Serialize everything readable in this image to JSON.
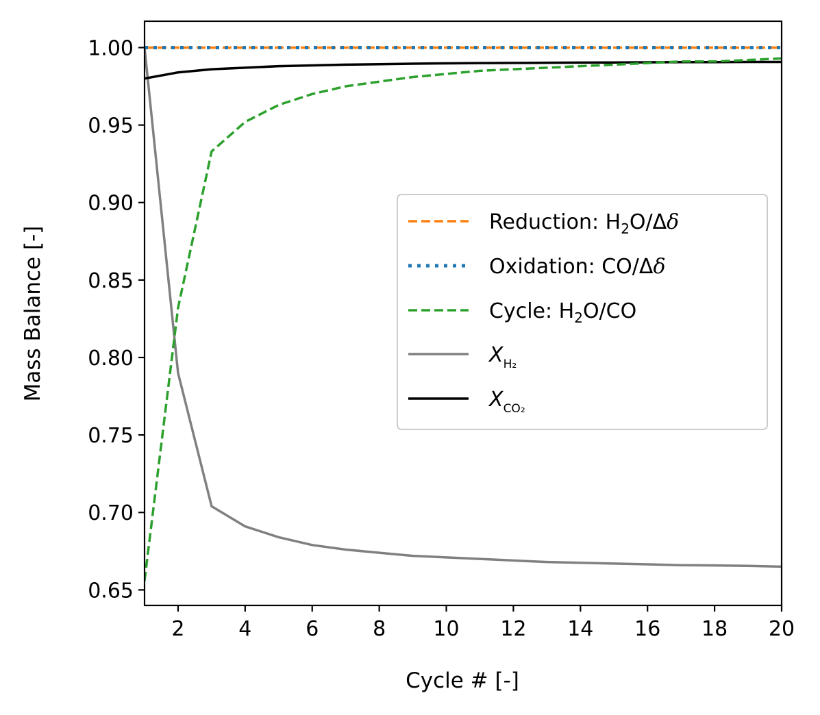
{
  "chart_data": {
    "type": "line",
    "title": "",
    "xlabel": "Cycle # [-]",
    "ylabel": "Mass Balance [-]",
    "xlim": [
      1,
      20
    ],
    "ylim": [
      0.64,
      1.017
    ],
    "xticks": [
      2,
      4,
      6,
      8,
      10,
      12,
      14,
      16,
      18,
      20
    ],
    "yticks": [
      0.65,
      0.7,
      0.75,
      0.8,
      0.85,
      0.9,
      0.95,
      1.0
    ],
    "ytick_labels": [
      "0.65",
      "0.70",
      "0.75",
      "0.80",
      "0.85",
      "0.90",
      "0.95",
      "1.00"
    ],
    "grid": false,
    "legend_position": "center-right",
    "x": [
      1,
      2,
      3,
      4,
      5,
      6,
      7,
      8,
      9,
      10,
      11,
      12,
      13,
      14,
      15,
      16,
      17,
      18,
      19,
      20
    ],
    "series": [
      {
        "name": "Reduction: H₂O/Δδ",
        "color": "#ff7f0e",
        "style": "dashed",
        "values": [
          1.0,
          1.0,
          1.0,
          1.0,
          1.0,
          1.0,
          1.0,
          1.0,
          1.0,
          1.0,
          1.0,
          1.0,
          1.0,
          1.0,
          1.0,
          1.0,
          1.0,
          1.0,
          1.0,
          1.0
        ]
      },
      {
        "name": "Oxidation: CO/Δδ",
        "color": "#1f77b4",
        "style": "dotted",
        "values": [
          1.0,
          1.0,
          1.0,
          1.0,
          1.0,
          1.0,
          1.0,
          1.0,
          1.0,
          1.0,
          1.0,
          1.0,
          1.0,
          1.0,
          1.0,
          1.0,
          1.0,
          1.0,
          1.0,
          1.0
        ]
      },
      {
        "name": "Cycle: H₂O/CO",
        "color": "#2ca02c",
        "style": "dashed",
        "values": [
          0.656,
          0.832,
          0.933,
          0.952,
          0.963,
          0.97,
          0.975,
          0.978,
          0.981,
          0.983,
          0.985,
          0.986,
          0.987,
          0.988,
          0.989,
          0.99,
          0.991,
          0.991,
          0.992,
          0.993
        ]
      },
      {
        "name": "X_H₂",
        "color": "#808080",
        "style": "solid",
        "values": [
          1.0,
          0.79,
          0.704,
          0.691,
          0.684,
          0.679,
          0.676,
          0.674,
          0.672,
          0.671,
          0.67,
          0.669,
          0.668,
          0.6675,
          0.667,
          0.6665,
          0.666,
          0.6658,
          0.6655,
          0.665
        ]
      },
      {
        "name": "X_CO₂",
        "color": "#000000",
        "style": "solid",
        "values": [
          0.98,
          0.984,
          0.986,
          0.987,
          0.988,
          0.9885,
          0.989,
          0.9893,
          0.9896,
          0.9898,
          0.99,
          0.9901,
          0.9902,
          0.9903,
          0.9904,
          0.9905,
          0.9906,
          0.9906,
          0.9907,
          0.9907
        ]
      }
    ]
  },
  "legend": {
    "reduction": {
      "prefix": "Reduction: H",
      "sub": "2",
      "suffix": "O/Δ",
      "italic": "δ"
    },
    "oxidation": {
      "prefix": "Oxidation: CO/Δ",
      "italic": "δ"
    },
    "cycle": {
      "prefix": "Cycle: H",
      "sub": "2",
      "suffix": "O/CO"
    },
    "xh2": {
      "symbol": "X",
      "sub": "H₂"
    },
    "xco2": {
      "symbol": "X",
      "sub": "CO₂"
    }
  }
}
